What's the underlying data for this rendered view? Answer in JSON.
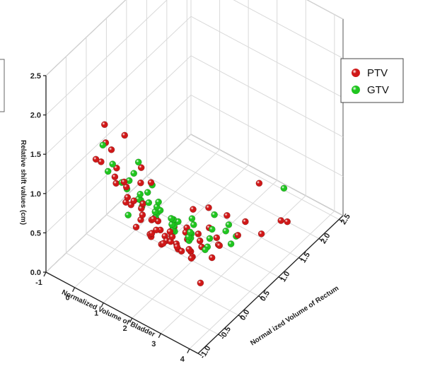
{
  "chart_data": {
    "type": "scatter",
    "zlabel": "Relative shift values (cm)",
    "xlabel": "Normalized Volume of Bladder",
    "ylabel": "Normal ized Volume of Rectum",
    "xticks": [
      "-1",
      "0",
      "1",
      "2",
      "3",
      "4"
    ],
    "yticks": [
      "-1.0",
      "-0.5",
      "0.0",
      "0.5",
      "1.0",
      "1.5",
      "2.0",
      "2.5"
    ],
    "zticks": [
      "0.0",
      "0.5",
      "1.0",
      "1.5",
      "2.0",
      "2.5"
    ],
    "xlim": [
      -1,
      4.3
    ],
    "ylim": [
      -1.0,
      2.6
    ],
    "zlim": [
      0,
      2.5
    ],
    "grid": true,
    "legend_position": "top-right",
    "series": [
      {
        "name": "PTV",
        "color": "#d01818",
        "points": [
          [
            0.9,
            -0.9,
            2.2
          ],
          [
            1.6,
            -0.9,
            2.2
          ],
          [
            0.8,
            -0.8,
            1.9
          ],
          [
            1.0,
            -0.8,
            1.85
          ],
          [
            0.6,
            -0.9,
            1.7
          ],
          [
            1.9,
            -0.7,
            1.75
          ],
          [
            2.1,
            -0.6,
            1.55
          ],
          [
            0.5,
            -0.7,
            1.55
          ],
          [
            0.9,
            -0.6,
            1.5
          ],
          [
            1.3,
            -0.7,
            1.45
          ],
          [
            1.6,
            -0.5,
            1.4
          ],
          [
            0.7,
            -0.5,
            1.3
          ],
          [
            1.1,
            -0.5,
            1.25
          ],
          [
            1.5,
            -0.6,
            1.2
          ],
          [
            0.6,
            -0.4,
            1.15
          ],
          [
            1.0,
            -0.4,
            1.05
          ],
          [
            1.4,
            -0.3,
            1.0
          ],
          [
            1.9,
            -0.4,
            0.95
          ],
          [
            0.8,
            -0.3,
            0.9
          ],
          [
            1.2,
            -0.2,
            0.85
          ],
          [
            1.7,
            -0.3,
            0.85
          ],
          [
            2.2,
            -0.2,
            0.75
          ],
          [
            0.7,
            -0.1,
            0.75
          ],
          [
            1.1,
            -0.1,
            0.7
          ],
          [
            1.5,
            0.0,
            0.65
          ],
          [
            2.0,
            0.0,
            0.55
          ],
          [
            0.9,
            0.0,
            0.55
          ],
          [
            1.3,
            0.1,
            0.45
          ],
          [
            1.8,
            0.1,
            0.4
          ],
          [
            2.3,
            0.2,
            0.35
          ],
          [
            0.6,
            0.1,
            0.35
          ],
          [
            1.0,
            0.2,
            0.3
          ],
          [
            1.4,
            0.2,
            0.25
          ],
          [
            1.9,
            0.3,
            0.2
          ],
          [
            0.8,
            0.3,
            0.2
          ],
          [
            1.2,
            0.3,
            0.15
          ],
          [
            1.6,
            0.4,
            0.15
          ],
          [
            2.1,
            0.4,
            0.1
          ],
          [
            0.7,
            0.4,
            0.1
          ],
          [
            1.1,
            0.5,
            0.08
          ],
          [
            1.5,
            0.5,
            0.05
          ],
          [
            2.0,
            0.5,
            0.05
          ],
          [
            0.9,
            0.6,
            0.05
          ],
          [
            1.3,
            0.6,
            0.03
          ],
          [
            1.8,
            0.6,
            0.03
          ],
          [
            2.4,
            0.7,
            0.02
          ],
          [
            0.6,
            0.7,
            0.02
          ],
          [
            1.0,
            0.7,
            0.02
          ],
          [
            1.4,
            0.8,
            0.01
          ],
          [
            1.9,
            0.8,
            0.01
          ],
          [
            1.2,
            0.9,
            0.01
          ],
          [
            1.7,
            0.9,
            0.0
          ],
          [
            2.2,
            1.0,
            0.0
          ],
          [
            0.8,
            0.9,
            0.0
          ],
          [
            1.5,
            1.0,
            0.0
          ],
          [
            1.1,
            1.0,
            0.0
          ],
          [
            2.0,
            1.1,
            0.0
          ],
          [
            1.6,
            1.2,
            0.0
          ],
          [
            2.6,
            1.2,
            0.1
          ],
          [
            3.0,
            1.5,
            0.05
          ],
          [
            2.8,
            0.6,
            0.3
          ],
          [
            3.4,
            1.7,
            0.2
          ],
          [
            3.2,
            2.0,
            0.0
          ],
          [
            2.5,
            1.8,
            0.45
          ],
          [
            2.7,
            0.2,
            0.0
          ],
          [
            1.3,
            1.4,
            0.1
          ],
          [
            0.9,
            1.3,
            0.05
          ],
          [
            1.8,
            1.5,
            0.05
          ],
          [
            2.3,
            1.6,
            0.02
          ]
        ]
      },
      {
        "name": "GTV",
        "color": "#1fc51f",
        "points": [
          [
            0.7,
            -0.8,
            1.85
          ],
          [
            1.8,
            -0.7,
            1.8
          ],
          [
            0.9,
            -0.7,
            1.6
          ],
          [
            1.5,
            -0.6,
            1.55
          ],
          [
            2.0,
            -0.5,
            1.45
          ],
          [
            0.6,
            -0.6,
            1.4
          ],
          [
            1.2,
            -0.5,
            1.35
          ],
          [
            1.7,
            -0.4,
            1.25
          ],
          [
            0.8,
            -0.4,
            1.2
          ],
          [
            1.3,
            -0.3,
            1.1
          ],
          [
            1.8,
            -0.2,
            1.05
          ],
          [
            0.7,
            -0.2,
            1.0
          ],
          [
            1.1,
            -0.2,
            0.95
          ],
          [
            1.6,
            -0.1,
            0.9
          ],
          [
            2.1,
            -0.1,
            0.85
          ],
          [
            0.9,
            0.0,
            0.8
          ],
          [
            1.4,
            0.0,
            0.75
          ],
          [
            1.9,
            0.1,
            0.7
          ],
          [
            0.8,
            0.1,
            0.65
          ],
          [
            1.2,
            0.2,
            0.6
          ],
          [
            1.7,
            0.2,
            0.55
          ],
          [
            2.2,
            0.3,
            0.5
          ],
          [
            1.0,
            0.3,
            0.45
          ],
          [
            1.5,
            0.4,
            0.4
          ],
          [
            2.0,
            0.4,
            0.35
          ],
          [
            0.7,
            0.5,
            0.3
          ],
          [
            1.3,
            0.5,
            0.25
          ],
          [
            1.8,
            0.6,
            0.2
          ],
          [
            2.3,
            0.6,
            0.15
          ],
          [
            1.1,
            0.7,
            0.1
          ],
          [
            1.6,
            0.7,
            0.08
          ],
          [
            2.1,
            0.8,
            0.05
          ],
          [
            0.9,
            0.8,
            0.05
          ],
          [
            1.4,
            0.9,
            0.03
          ],
          [
            1.9,
            1.0,
            0.02
          ],
          [
            2.5,
            1.1,
            0.02
          ],
          [
            1.2,
            1.1,
            0.01
          ],
          [
            1.7,
            1.2,
            0.0
          ],
          [
            2.4,
            1.3,
            0.0
          ],
          [
            1.0,
            1.2,
            0.0
          ],
          [
            2.8,
            2.2,
            0.25
          ],
          [
            2.6,
            0.9,
            0.3
          ],
          [
            1.5,
            1.4,
            0.05
          ],
          [
            2.0,
            1.4,
            0.02
          ],
          [
            0.8,
            1.0,
            0.02
          ],
          [
            1.3,
            0.2,
            0.65
          ],
          [
            1.6,
            -0.3,
            1.05
          ],
          [
            0.6,
            -0.1,
            0.6
          ]
        ]
      }
    ]
  }
}
